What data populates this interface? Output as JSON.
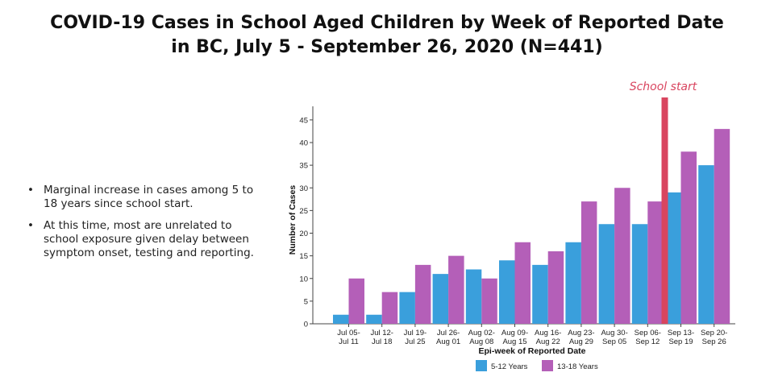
{
  "title_lines": [
    "COVID-19 Cases in School Aged Children by Week of Reported Date",
    "in BC, July 5 - September 26, 2020 (N=441)"
  ],
  "bullets": [
    "Marginal increase in cases among 5 to 18 years since school start.",
    "At this time, most are unrelated to school exposure given delay between symptom onset, testing and reporting."
  ],
  "chart_data": {
    "type": "bar",
    "xlabel": "Epi-week of Reported Date",
    "ylabel": "Number of Cases",
    "ylim": [
      0,
      48
    ],
    "yticks": [
      0,
      5,
      10,
      15,
      20,
      25,
      30,
      35,
      40,
      45
    ],
    "grid": false,
    "legend_position": "bottom",
    "categories": [
      [
        "Jul 05-",
        "Jul 11"
      ],
      [
        "Jul 12-",
        "Jul 18"
      ],
      [
        "Jul 19-",
        "Jul 25"
      ],
      [
        "Jul 26-",
        "Aug 01"
      ],
      [
        "Aug 02-",
        "Aug 08"
      ],
      [
        "Aug 09-",
        "Aug 15"
      ],
      [
        "Aug 16-",
        "Aug 22"
      ],
      [
        "Aug 23-",
        "Aug 29"
      ],
      [
        "Aug 30-",
        "Sep 05"
      ],
      [
        "Sep 06-",
        "Sep 12"
      ],
      [
        "Sep 13-",
        "Sep 19"
      ],
      [
        "Sep 20-",
        "Sep 26"
      ]
    ],
    "series": [
      {
        "name": "5-12 Years",
        "color": "#3a9fdc",
        "values": [
          2,
          2,
          7,
          11,
          12,
          14,
          13,
          18,
          22,
          22,
          29,
          35
        ]
      },
      {
        "name": "13-18 Years",
        "color": "#b45fb8",
        "values": [
          10,
          7,
          13,
          15,
          10,
          18,
          16,
          27,
          30,
          27,
          38,
          43
        ]
      }
    ],
    "annotation": {
      "text": "School start",
      "color": "#d9455f",
      "between_categories": [
        9,
        10
      ]
    }
  }
}
